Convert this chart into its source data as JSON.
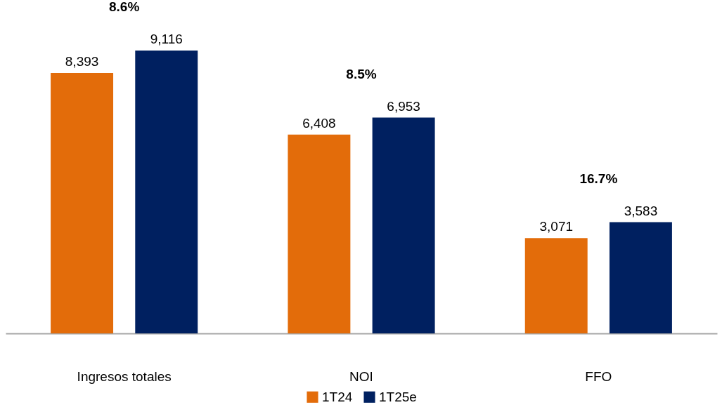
{
  "chart_data": {
    "type": "bar",
    "categories": [
      "Ingresos totales",
      "NOI",
      "FFO"
    ],
    "series": [
      {
        "name": "1T24",
        "color": "#e36c0a",
        "values": [
          8393,
          6408,
          3071
        ],
        "value_labels": [
          "8,393",
          "6,408",
          "3,071"
        ]
      },
      {
        "name": "1T25e",
        "color": "#002060",
        "values": [
          9116,
          6953,
          3583
        ],
        "value_labels": [
          "9,116",
          "6,953",
          "3,583"
        ]
      }
    ],
    "tick_labels": "x",
    "legend": "bottom",
    "annotations": [
      "8.6%",
      "8.5%",
      "16.7%"
    ]
  }
}
